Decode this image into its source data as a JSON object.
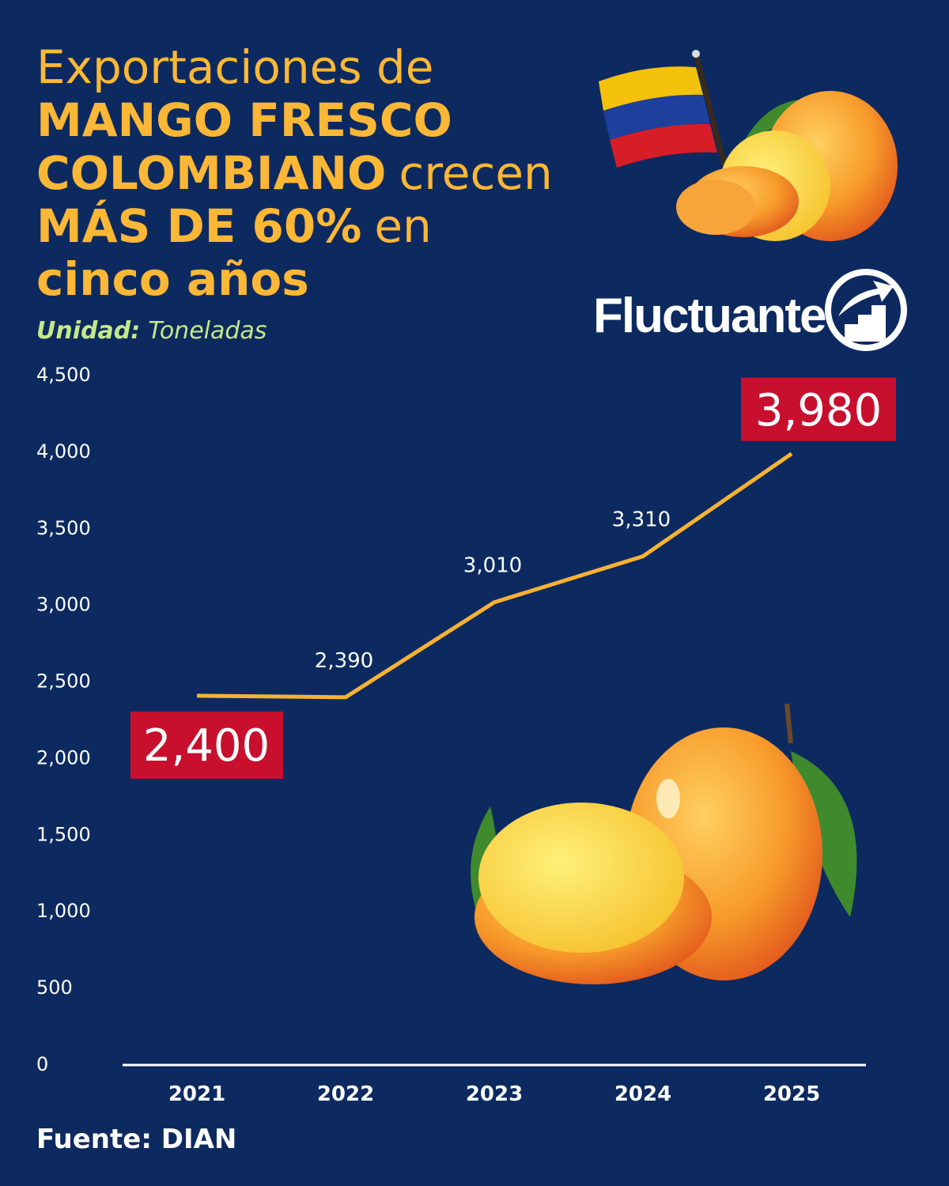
{
  "chart_data": {
    "type": "line",
    "title_lines": [
      [
        {
          "text": "Exportaciones de",
          "bold": false
        }
      ],
      [
        {
          "text": "MANGO FRESCO",
          "bold": true
        }
      ],
      [
        {
          "text": "COLOMBIANO",
          "bold": true
        },
        {
          "text": "crecen",
          "bold": false
        }
      ],
      [
        {
          "text": "MÁS DE 60%",
          "bold": true
        },
        {
          "text": "en",
          "bold": false
        }
      ],
      [
        {
          "text": "cinco años",
          "bold": true
        }
      ]
    ],
    "unit_label": "Unidad:",
    "unit": "Toneladas",
    "brand": "Fluctuante",
    "source": "Fuente: DIAN",
    "categories": [
      "2021",
      "2022",
      "2023",
      "2024",
      "2025"
    ],
    "values": [
      2400,
      2390,
      3010,
      3310,
      3980
    ],
    "value_labels": [
      "2,400",
      "2,390",
      "3,010",
      "3,310",
      "3,980"
    ],
    "color": "#f7b233",
    "ylim": [
      0,
      4500
    ],
    "yticks": [
      0,
      500,
      {
        "value": 1000,
        "label": "1,000"
      },
      {
        "value": 1500,
        "label": "1,500"
      },
      {
        "value": 2000,
        "label": "2,000"
      },
      {
        "value": 2500,
        "label": "2,500"
      },
      {
        "value": 3000,
        "label": "3,000"
      },
      {
        "value": 3500,
        "label": "3,500"
      },
      {
        "value": 4000,
        "label": "4,000"
      },
      {
        "value": 4500,
        "label": "4,500"
      }
    ],
    "grid": false
  }
}
